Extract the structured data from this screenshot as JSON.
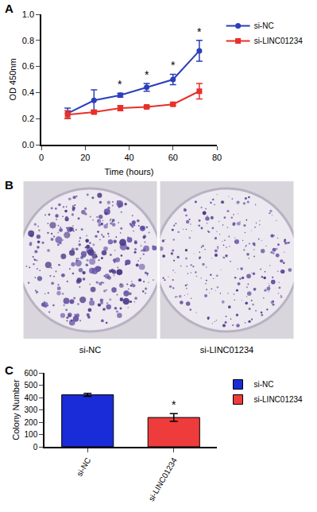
{
  "chart_data": [
    {
      "panel_label": "A",
      "type": "line",
      "x_label": "Time (hours)",
      "y_label": "OD 450nm",
      "x": [
        12,
        24,
        36,
        48,
        60,
        72
      ],
      "series": [
        {
          "name": "si-NC",
          "color": "#2b3fb8",
          "marker": "circle",
          "values": [
            0.24,
            0.34,
            0.38,
            0.44,
            0.5,
            0.72
          ],
          "errors": [
            0.04,
            0.08,
            0.015,
            0.03,
            0.04,
            0.08
          ]
        },
        {
          "name": "si-LINC01234",
          "color": "#e8302a",
          "marker": "square",
          "values": [
            0.23,
            0.25,
            0.28,
            0.29,
            0.31,
            0.41
          ],
          "errors": [
            0.03,
            0.01,
            0.02,
            0.01,
            0.01,
            0.06
          ]
        }
      ],
      "significance": [
        null,
        null,
        "*",
        "*",
        "*",
        "*"
      ],
      "xlim": [
        0,
        80
      ],
      "xticks": [
        0,
        20,
        40,
        60,
        80
      ],
      "ylim": [
        0,
        1
      ],
      "yticks": [
        {
          "value": 0,
          "label": "0.0"
        },
        {
          "value": 0.2,
          "label": "0.2"
        },
        {
          "value": 0.4,
          "label": "0.4"
        },
        {
          "value": 0.6,
          "label": "0.6"
        },
        {
          "value": 0.8,
          "label": "0.8"
        },
        {
          "value": 1,
          "label": "1.0"
        }
      ],
      "grid": false,
      "legend": "right"
    },
    {
      "panel_label": "B",
      "type": "image",
      "categories": [
        "si-NC",
        "si-LINC01234"
      ]
    },
    {
      "panel_label": "C",
      "type": "bar",
      "y_label": "Colony Number",
      "categories": [
        "si-NC",
        "si-LINC01234"
      ],
      "values": [
        422,
        238
      ],
      "errors": [
        12,
        32
      ],
      "colors": [
        "#1a2bd8",
        "#ee3b3b"
      ],
      "significance": [
        null,
        "*"
      ],
      "ylim": [
        0,
        600
      ],
      "yticks": [
        0,
        100,
        200,
        300,
        400,
        500,
        600
      ],
      "grid": false,
      "legend": "right"
    }
  ]
}
